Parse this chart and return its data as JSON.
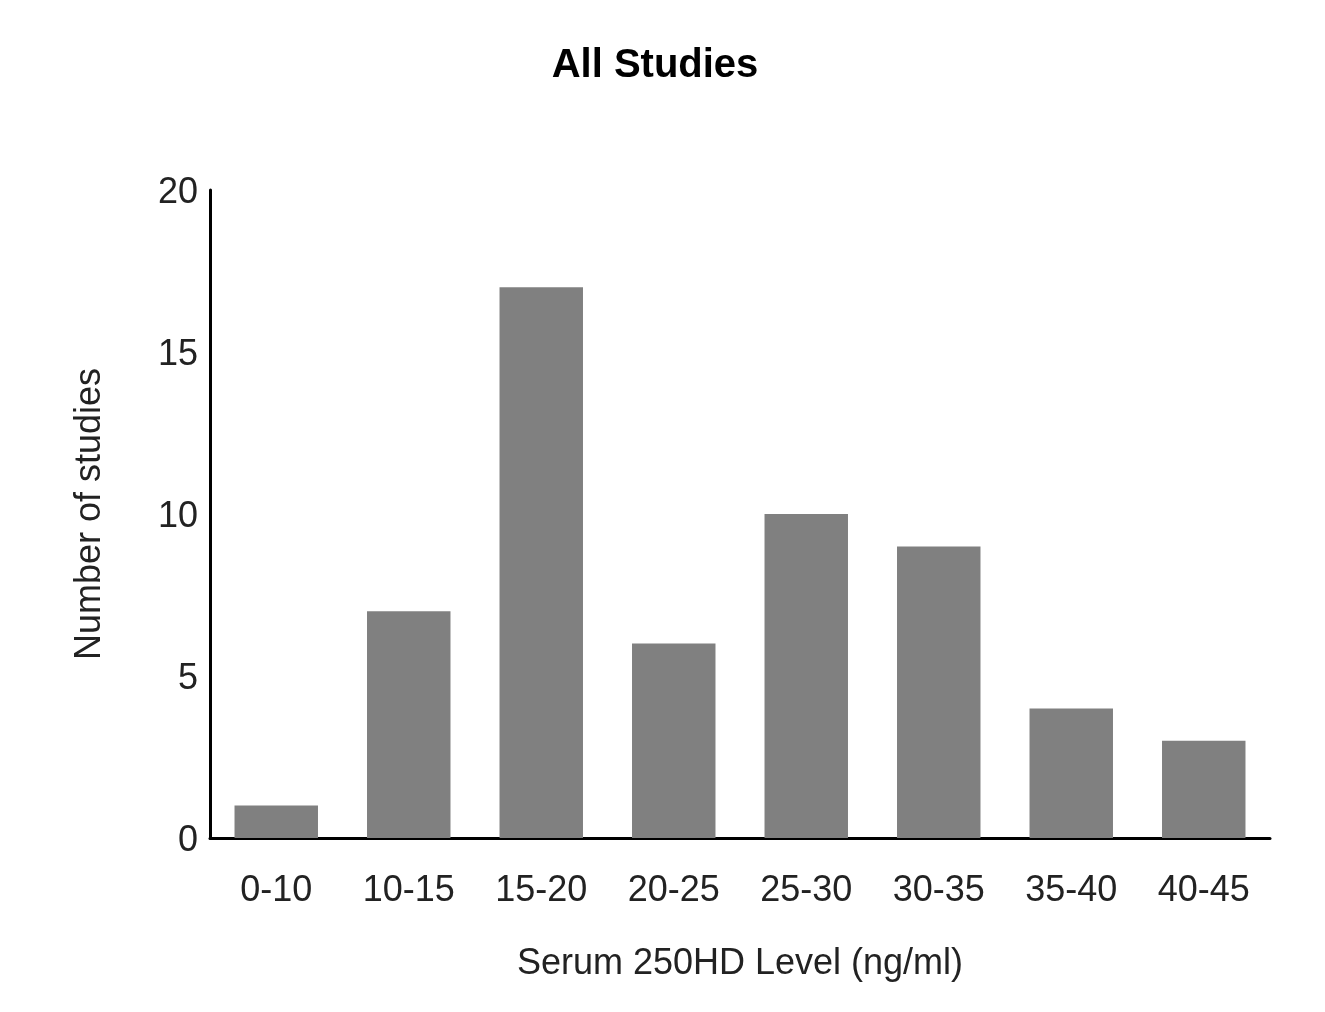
{
  "chart_data": {
    "type": "bar",
    "title": "All Studies",
    "xlabel": "Serum 250HD Level (ng/ml)",
    "ylabel": "Number of studies",
    "categories": [
      "0-10",
      "10-15",
      "15-20",
      "20-25",
      "25-30",
      "30-35",
      "35-40",
      "40-45"
    ],
    "values": [
      1,
      7,
      17,
      6,
      10,
      9,
      4,
      3
    ],
    "color": "#808080",
    "ylim": [
      0,
      20
    ],
    "yticks": [
      0,
      5,
      10,
      15,
      20
    ],
    "grid": false
  }
}
